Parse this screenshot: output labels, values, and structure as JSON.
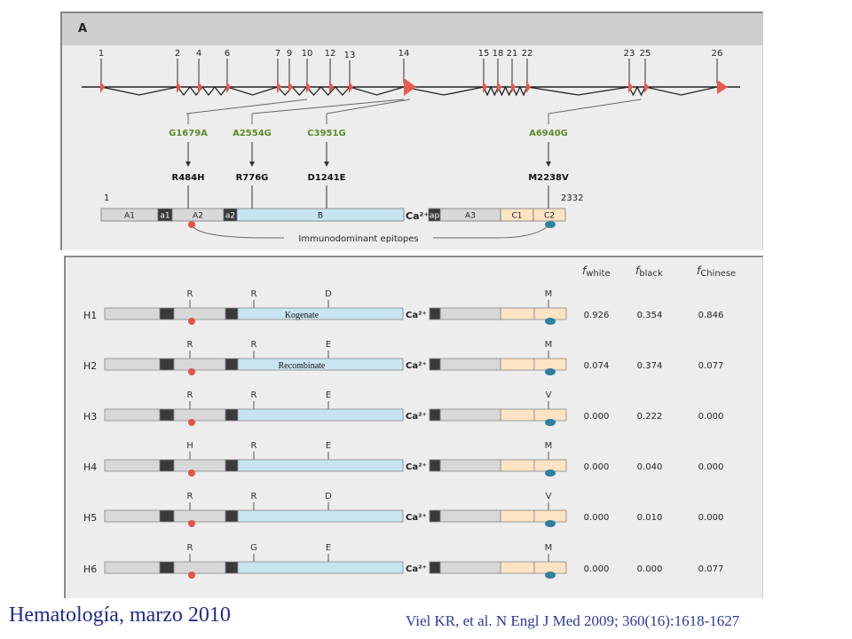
{
  "panel_a": {
    "label": "A",
    "exon_labels": [
      "1",
      "2",
      "4",
      "6",
      "7",
      "9",
      "10",
      "12",
      "13",
      "14",
      "15",
      "18",
      "21",
      "22",
      "23",
      "25",
      "26"
    ],
    "mutations": [
      {
        "nucleotide": "G1679A",
        "protein": "R484H"
      },
      {
        "nucleotide": "A2554G",
        "protein": "R776G"
      },
      {
        "nucleotide": "C3951G",
        "protein": "D1241E"
      },
      {
        "nucleotide": "A6940G",
        "protein": "M2238V"
      }
    ],
    "protein_start": "1",
    "protein_end": "2332",
    "domains": [
      "A1",
      "a1",
      "A2",
      "a2",
      "B",
      "ap",
      "A3",
      "C1",
      "C2"
    ],
    "calcium": "Ca²⁺",
    "epitopes_label": "Immunodominant epitopes"
  },
  "panel_b": {
    "freq_headers": [
      "f",
      "f",
      "f"
    ],
    "freq_header_subs": [
      "white",
      "black",
      "Chinese"
    ],
    "haplotypes": [
      {
        "name": "H1",
        "residues": [
          "R",
          "R",
          "D",
          "M"
        ],
        "white": "0.926",
        "black": "0.354",
        "chinese": "0.846",
        "product": "Kogenate"
      },
      {
        "name": "H2",
        "residues": [
          "R",
          "R",
          "E",
          "M"
        ],
        "white": "0.074",
        "black": "0.374",
        "chinese": "0.077",
        "product": "Recombinate"
      },
      {
        "name": "H3",
        "residues": [
          "R",
          "R",
          "E",
          "V"
        ],
        "white": "0.000",
        "black": "0.222",
        "chinese": "0.000",
        "product": ""
      },
      {
        "name": "H4",
        "residues": [
          "H",
          "R",
          "E",
          "M"
        ],
        "white": "0.000",
        "black": "0.040",
        "chinese": "0.000",
        "product": ""
      },
      {
        "name": "H5",
        "residues": [
          "R",
          "R",
          "D",
          "V"
        ],
        "white": "0.000",
        "black": "0.010",
        "chinese": "0.000",
        "product": ""
      },
      {
        "name": "H6",
        "residues": [
          "R",
          "G",
          "E",
          "M"
        ],
        "white": "0.000",
        "black": "0.000",
        "chinese": "0.077",
        "product": ""
      }
    ],
    "calcium": "Ca²⁺"
  },
  "footer": {
    "left": "Hematología, marzo 2010",
    "right": "Viel KR, et al. N Engl J Med 2009; 360(16):1618-1627"
  },
  "colors": {
    "exon_red": "#e8594f",
    "gene_line": "#222222",
    "mutation_green": "#5a8a2a",
    "domain_grey": "#d8d8d8",
    "domain_dark": "#3a3a3a",
    "b_domain": "#c8e4f0",
    "c_domain": "#fbe3c4",
    "red_dot": "#e0554a",
    "teal_dot": "#2f7f9f",
    "footer_blue": "#1f2a8a"
  }
}
